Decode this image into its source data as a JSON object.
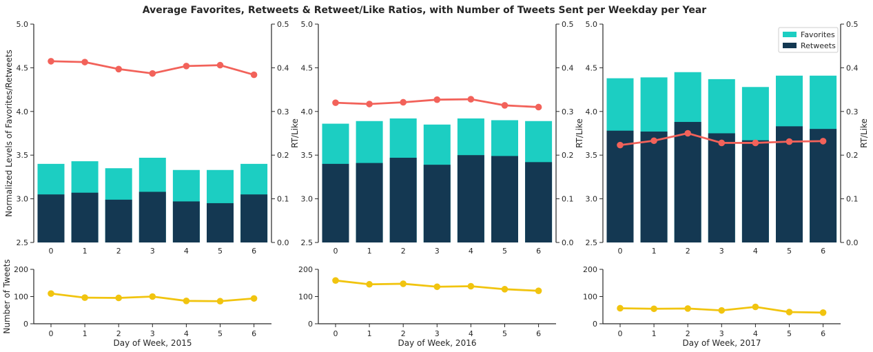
{
  "figure_title": "Average Favorites, Retweets & Retweet/Like Ratios, with Number of Tweets Sent per Weekday per Year",
  "colors": {
    "favorites": "#1ccec2",
    "retweets": "#143852",
    "ratio": "#f2625a",
    "tweets": "#f1c40f",
    "axis": "#262626"
  },
  "chart_data": [
    {
      "type": "bar",
      "panel": "2015",
      "categories": [
        "0",
        "1",
        "2",
        "3",
        "4",
        "5",
        "6"
      ],
      "series": [
        {
          "name": "Favorites",
          "values": [
            3.4,
            3.43,
            3.35,
            3.47,
            3.33,
            3.33,
            3.4
          ]
        },
        {
          "name": "Retweets",
          "values": [
            3.05,
            3.07,
            2.99,
            3.08,
            2.97,
            2.95,
            3.05
          ]
        }
      ],
      "ratio_values": [
        0.415,
        0.413,
        0.397,
        0.387,
        0.404,
        0.406,
        0.384
      ],
      "ylabel": "Normalized Levels of Favorites/Retweets",
      "y2label": "RT/Like",
      "ylim": [
        2.5,
        5.0
      ],
      "y2lim": [
        0.0,
        0.5
      ],
      "yticks": [
        "2.5",
        "3.0",
        "3.5",
        "4.0",
        "4.5",
        "5.0"
      ],
      "y2ticks": [
        "0.0",
        "0.1",
        "0.2",
        "0.3",
        "0.4",
        "0.5"
      ],
      "legend": false
    },
    {
      "type": "bar",
      "panel": "2016",
      "categories": [
        "0",
        "1",
        "2",
        "3",
        "4",
        "5",
        "6"
      ],
      "series": [
        {
          "name": "Favorites",
          "values": [
            3.86,
            3.89,
            3.92,
            3.85,
            3.92,
            3.9,
            3.89
          ]
        },
        {
          "name": "Retweets",
          "values": [
            3.4,
            3.41,
            3.47,
            3.39,
            3.5,
            3.49,
            3.42
          ]
        }
      ],
      "ratio_values": [
        0.32,
        0.317,
        0.321,
        0.327,
        0.328,
        0.314,
        0.31
      ],
      "ylabel": "",
      "y2label": "RT/Like",
      "ylim": [
        2.5,
        5.0
      ],
      "y2lim": [
        0.0,
        0.5
      ],
      "yticks": [
        "2.5",
        "3.0",
        "3.5",
        "4.0",
        "4.5",
        "5.0"
      ],
      "y2ticks": [
        "0.0",
        "0.1",
        "0.2",
        "0.3",
        "0.4",
        "0.5"
      ],
      "legend": false
    },
    {
      "type": "bar",
      "panel": "2017",
      "categories": [
        "0",
        "1",
        "2",
        "3",
        "4",
        "5",
        "6"
      ],
      "series": [
        {
          "name": "Favorites",
          "values": [
            4.38,
            4.39,
            4.45,
            4.37,
            4.28,
            4.41,
            4.41
          ]
        },
        {
          "name": "Retweets",
          "values": [
            3.78,
            3.77,
            3.88,
            3.75,
            3.67,
            3.83,
            3.8
          ]
        }
      ],
      "ratio_values": [
        0.223,
        0.233,
        0.25,
        0.228,
        0.228,
        0.231,
        0.232
      ],
      "ylabel": "",
      "y2label": "RT/Like",
      "ylim": [
        2.5,
        5.0
      ],
      "y2lim": [
        0.0,
        0.5
      ],
      "yticks": [
        "2.5",
        "3.0",
        "3.5",
        "4.0",
        "4.5",
        "5.0"
      ],
      "y2ticks": [
        "0.0",
        "0.1",
        "0.2",
        "0.3",
        "0.4",
        "0.5"
      ],
      "legend": true,
      "legend_position": "top-right"
    },
    {
      "type": "line",
      "panel": "2015",
      "categories": [
        "0",
        "1",
        "2",
        "3",
        "4",
        "5",
        "6"
      ],
      "values": [
        111,
        96,
        95,
        100,
        84,
        83,
        93
      ],
      "ylabel": "Number of Tweets",
      "xlabel": "Day of Week, 2015",
      "ylim": [
        0,
        200
      ],
      "yticks": [
        "0",
        "100",
        "200"
      ]
    },
    {
      "type": "line",
      "panel": "2016",
      "categories": [
        "0",
        "1",
        "2",
        "3",
        "4",
        "5",
        "6"
      ],
      "values": [
        159,
        145,
        147,
        136,
        138,
        127,
        121
      ],
      "ylabel": "",
      "xlabel": "Day of Week, 2016",
      "ylim": [
        0,
        200
      ],
      "yticks": [
        "0",
        "100",
        "200"
      ]
    },
    {
      "type": "line",
      "panel": "2017",
      "categories": [
        "0",
        "1",
        "2",
        "3",
        "4",
        "5",
        "6"
      ],
      "values": [
        57,
        55,
        56,
        49,
        62,
        43,
        41
      ],
      "ylabel": "",
      "xlabel": "Day of Week, 2017",
      "ylim": [
        0,
        200
      ],
      "yticks": [
        "0",
        "100",
        "200"
      ]
    }
  ]
}
